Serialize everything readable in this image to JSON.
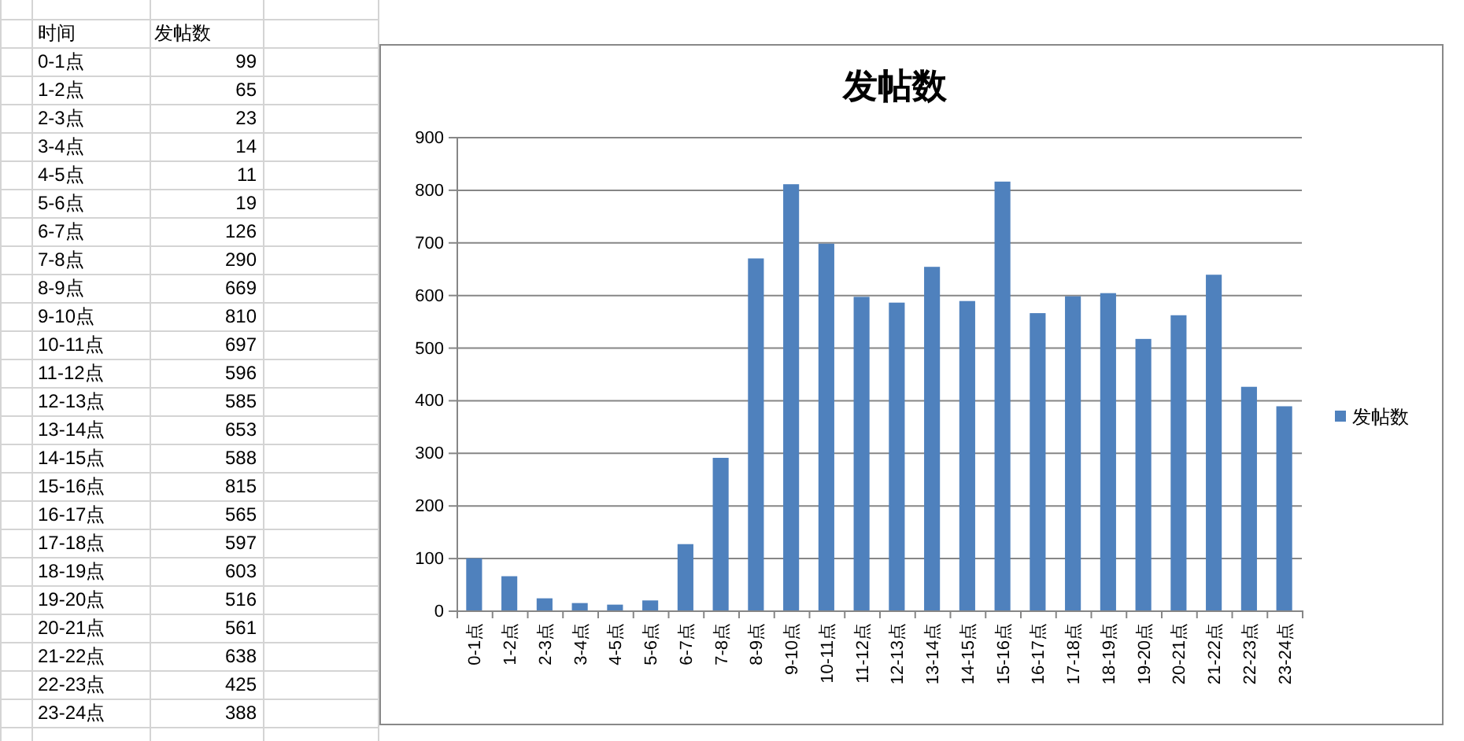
{
  "chart_data": [
    {
      "type": "other",
      "annotations": [
        "时间"
      ],
      "categories": [
        "0-1点",
        "1-2点",
        "2-3点",
        "3-4点",
        "4-5点",
        "5-6点",
        "6-7点",
        "7-8点",
        "8-9点",
        "9-10点",
        "10-11点",
        "11-12点",
        "12-13点",
        "13-14点",
        "14-15点",
        "15-16点",
        "16-17点",
        "17-18点",
        "18-19点",
        "19-20点",
        "20-21点",
        "21-22点",
        "22-23点",
        "23-24点"
      ],
      "series": [
        {
          "name": "发帖数",
          "values": [
            99,
            65,
            23,
            14,
            11,
            19,
            126,
            290,
            669,
            810,
            697,
            596,
            585,
            653,
            588,
            815,
            565,
            597,
            603,
            516,
            561,
            638,
            425,
            388
          ]
        }
      ],
      "data_labels": true
    },
    {
      "type": "bar",
      "title": "发帖数",
      "categories": [
        "0-1点",
        "1-2点",
        "2-3点",
        "3-4点",
        "4-5点",
        "5-6点",
        "6-7点",
        "7-8点",
        "8-9点",
        "9-10点",
        "10-11点",
        "11-12点",
        "12-13点",
        "13-14点",
        "14-15点",
        "15-16点",
        "16-17点",
        "17-18点",
        "18-19点",
        "19-20点",
        "20-21点",
        "21-22点",
        "22-23点",
        "23-24点"
      ],
      "series": [
        {
          "name": "发帖数",
          "color": "#4f81bd",
          "values": [
            99,
            65,
            23,
            14,
            11,
            19,
            126,
            290,
            669,
            810,
            697,
            596,
            585,
            653,
            588,
            815,
            565,
            597,
            603,
            516,
            561,
            638,
            425,
            388
          ]
        }
      ],
      "ylim": [
        0,
        900
      ],
      "yticks": [
        0,
        100,
        200,
        300,
        400,
        500,
        600,
        700,
        800,
        900
      ],
      "grid": "y",
      "legend": "right"
    }
  ]
}
